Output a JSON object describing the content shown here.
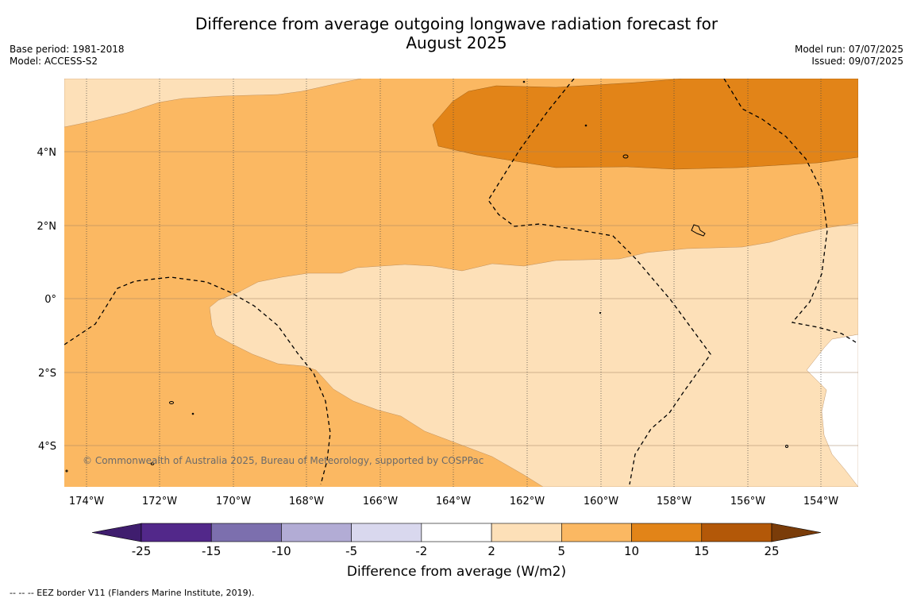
{
  "title_line1": "Difference from average outgoing longwave radiation forecast for",
  "title_line2": "August 2025",
  "base_period": "Base period: 1981-2018",
  "model": "Model: ACCESS-S2",
  "model_run": "Model run: 07/07/2025",
  "issued": "Issued: 09/07/2025",
  "copyright": "© Commonwealth of Australia 2025, Bureau of Meteorology, supported by COSPPac",
  "longitude_labels": [
    "174°W",
    "172°W",
    "170°W",
    "168°W",
    "166°W",
    "164°W",
    "162°W",
    "160°W",
    "158°W",
    "156°W",
    "154°W"
  ],
  "latitude_labels": [
    "4°N",
    "2°N",
    "0°",
    "2°S",
    "4°S"
  ],
  "colorbar": {
    "label": "Difference from average (W/m2)",
    "ticks": [
      "-25",
      "-15",
      "-10",
      "-5",
      "-2",
      "2",
      "5",
      "10",
      "15",
      "25"
    ],
    "colors": [
      "#3f1d6e",
      "#52288a",
      "#7c6fae",
      "#b2acd5",
      "#d9d8ee",
      "#ffffff",
      "#fde0b8",
      "#fbb862",
      "#e28418",
      "#b35808",
      "#7a3c09"
    ]
  },
  "footnote": "--  --  -- EEZ border V11 (Flanders Marine Institute, 2019)."
}
